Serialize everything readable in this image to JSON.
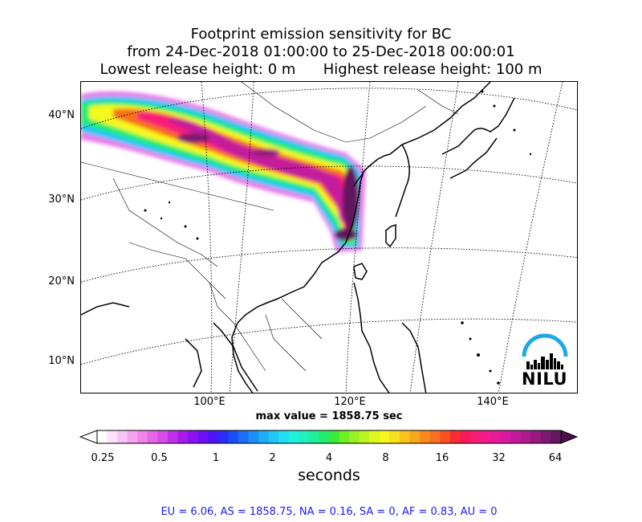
{
  "title": {
    "line1": "Footprint emission sensitivity for BC",
    "line2": "from 24-Dec-2018 01:00:00 to 25-Dec-2018 00:00:01",
    "line3": "Lowest release height: 0 m      Highest release height: 100 m"
  },
  "map": {
    "lat_labels": [
      "40°N",
      "30°N",
      "20°N",
      "10°N"
    ],
    "lon_labels": [
      "100°E",
      "120°E",
      "140°E"
    ]
  },
  "max_value_text": "max value = 1858.75 sec",
  "colorbar": {
    "ticks": [
      "0.25",
      "0.5",
      "1",
      "2",
      "4",
      "8",
      "16",
      "32",
      "64"
    ],
    "label": "seconds",
    "colors": [
      "#ffffff",
      "#fde2fa",
      "#fac3f4",
      "#f6a3ef",
      "#f084e8",
      "#e465e8",
      "#d74be8",
      "#c230ea",
      "#a91aef",
      "#8c12f2",
      "#6d10f5",
      "#4f14f7",
      "#2c2df8",
      "#1a4ff8",
      "#1a6ef8",
      "#1c8ef8",
      "#1eabf8",
      "#20c7f6",
      "#20dff0",
      "#20f0de",
      "#20f2bd",
      "#20ef98",
      "#22ec70",
      "#3aea3a",
      "#6fee22",
      "#98f220",
      "#bef520",
      "#dcf81e",
      "#f5f81c",
      "#f8e01c",
      "#f8c41a",
      "#f8a61a",
      "#f88a1c",
      "#f8701e",
      "#f85220",
      "#f82d32",
      "#f81a58",
      "#f81a78",
      "#f41a8c",
      "#e81a98",
      "#d81aa0",
      "#c41a9c",
      "#ae1a90",
      "#961a80",
      "#7a1a70",
      "#62185e"
    ]
  },
  "stats": "EU = 6.06,  AS = 1858.75,  NA = 0.16,  SA = 0,  AF = 0.83,  AU = 0",
  "logo": {
    "text": "NILU",
    "arc_color": "#1ea8e6"
  }
}
